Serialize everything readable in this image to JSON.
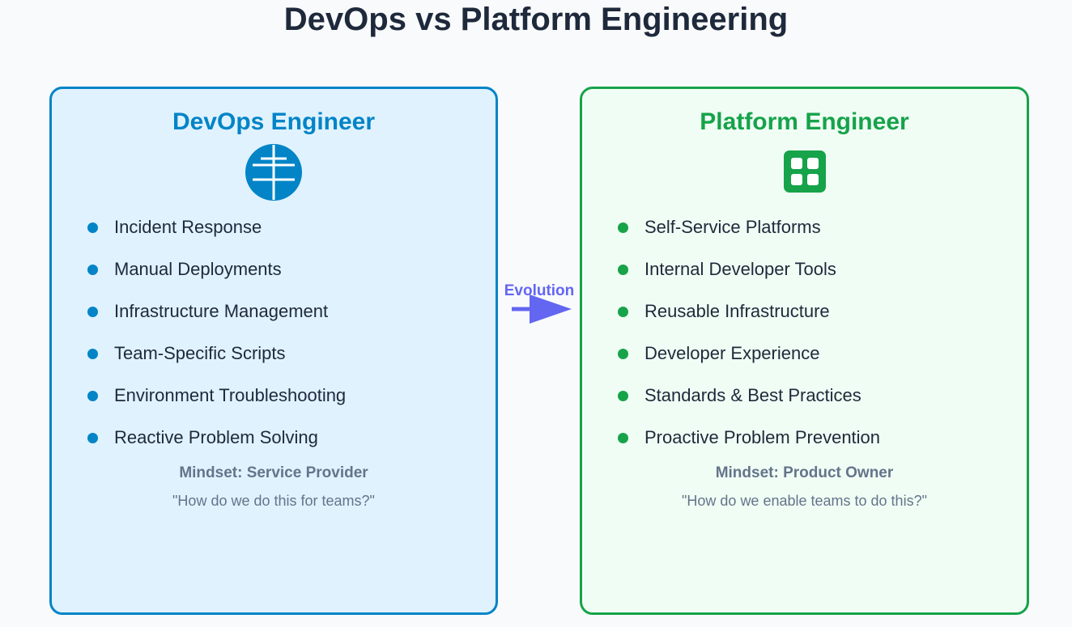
{
  "title": "DevOps vs Platform Engineering",
  "colors": {
    "devops": "#0284c7",
    "platform": "#16a34a",
    "arrow": "#6366f1"
  },
  "arrow": {
    "label": "Evolution",
    "icon": "arrow-right-icon"
  },
  "devops": {
    "title": "DevOps Engineer",
    "icon": "network-tower-icon",
    "items": [
      "Incident Response",
      "Manual Deployments",
      "Infrastructure Management",
      "Team-Specific Scripts",
      "Environment Troubleshooting",
      "Reactive Problem Solving"
    ],
    "mindset": "Mindset: Service Provider",
    "quote": "\"How do we do this for teams?\""
  },
  "platform": {
    "title": "Platform Engineer",
    "icon": "grid-icon",
    "items": [
      "Self-Service Platforms",
      "Internal Developer Tools",
      "Reusable Infrastructure",
      "Developer Experience",
      "Standards & Best Practices",
      "Proactive Problem Prevention"
    ],
    "mindset": "Mindset: Product Owner",
    "quote": "\"How do we enable teams to do this?\""
  }
}
